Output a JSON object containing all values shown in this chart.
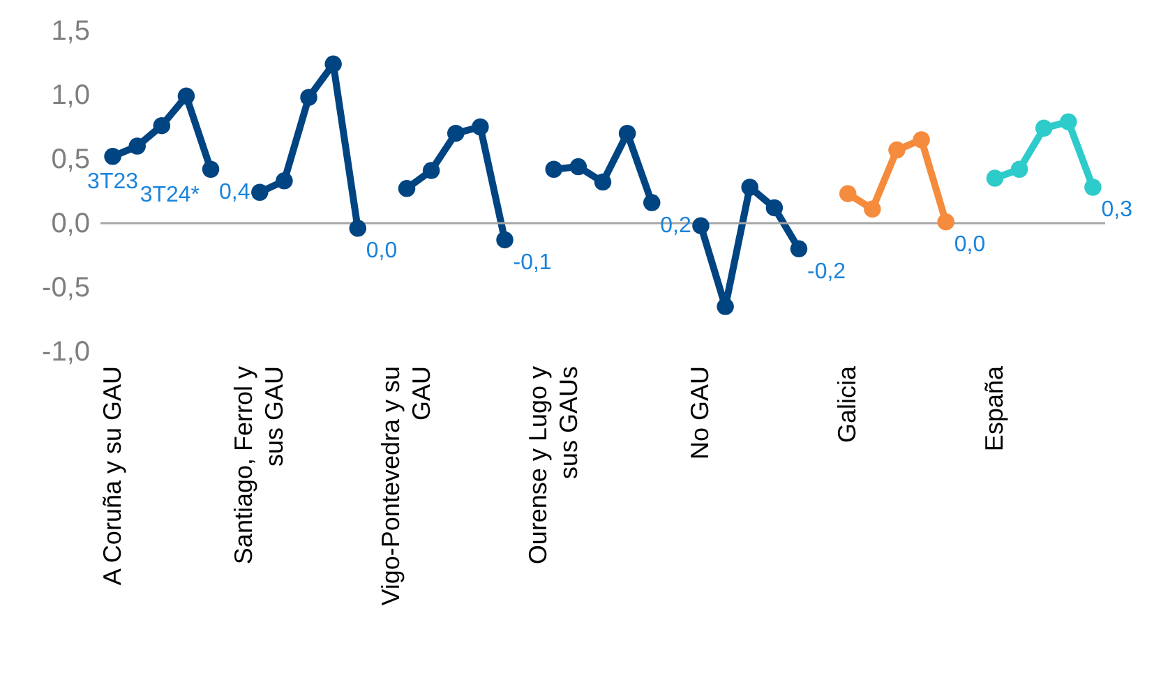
{
  "chart_data": {
    "type": "line",
    "marker": "circle",
    "line_style": "solid",
    "categories": [
      "A Coruña y su GAU",
      null,
      null,
      null,
      null,
      null,
      "Santiago, Ferrol y\nsus GAU",
      null,
      null,
      null,
      null,
      null,
      "Vigo-Pontevedra y su\nGAU",
      null,
      null,
      null,
      null,
      null,
      "Ourense y Lugo y\nsus GAUs",
      null,
      null,
      null,
      null,
      null,
      "No GAU",
      null,
      null,
      null,
      null,
      null,
      "Galicia",
      null,
      null,
      null,
      null,
      null,
      "España",
      null,
      null,
      null,
      null
    ],
    "ylim": [
      -1.0,
      1.5
    ],
    "yticks": [
      {
        "value": -1.0,
        "label": "-1,0"
      },
      {
        "value": -0.5,
        "label": "-0,5"
      },
      {
        "value": 0,
        "label": "0,0"
      },
      {
        "value": 0.5,
        "label": "0,5"
      },
      {
        "value": 1.0,
        "label": "1,0"
      },
      {
        "value": 1.5,
        "label": "1,5"
      }
    ],
    "ref_lines": [
      {
        "axis": "y",
        "value": 0,
        "color": "#a6a6a6"
      }
    ],
    "annotations": [
      "3T23",
      "3T24*"
    ],
    "series": [
      {
        "color": "#004481",
        "values": [
          0.52,
          0.6,
          0.76,
          0.99,
          0.42,
          null,
          null,
          null,
          null,
          null,
          null,
          null,
          null,
          null,
          null,
          null,
          null,
          null,
          null,
          null,
          null,
          null,
          null,
          null,
          null,
          null,
          null,
          null,
          null,
          null,
          null,
          null,
          null,
          null,
          null,
          null,
          null,
          null,
          null,
          null,
          null
        ],
        "value_labels": [
          null,
          null,
          null,
          null,
          "0,4",
          null,
          null,
          null,
          null,
          null,
          null,
          null,
          null,
          null,
          null,
          null,
          null,
          null,
          null,
          null,
          null,
          null,
          null,
          null,
          null,
          null,
          null,
          null,
          null,
          null,
          null,
          null,
          null,
          null,
          null,
          null,
          null,
          null,
          null,
          null,
          null
        ]
      },
      {
        "color": "#004481",
        "values": [
          null,
          null,
          null,
          null,
          null,
          null,
          0.24,
          0.33,
          0.98,
          1.24,
          -0.04,
          null,
          null,
          null,
          null,
          null,
          null,
          null,
          null,
          null,
          null,
          null,
          null,
          null,
          null,
          null,
          null,
          null,
          null,
          null,
          null,
          null,
          null,
          null,
          null,
          null,
          null,
          null,
          null,
          null,
          null
        ],
        "value_labels": [
          null,
          null,
          null,
          null,
          null,
          null,
          null,
          null,
          null,
          null,
          "0,0",
          null,
          null,
          null,
          null,
          null,
          null,
          null,
          null,
          null,
          null,
          null,
          null,
          null,
          null,
          null,
          null,
          null,
          null,
          null,
          null,
          null,
          null,
          null,
          null,
          null,
          null,
          null,
          null,
          null,
          null
        ]
      },
      {
        "color": "#004481",
        "values": [
          null,
          null,
          null,
          null,
          null,
          null,
          null,
          null,
          null,
          null,
          null,
          null,
          0.27,
          0.41,
          0.7,
          0.75,
          -0.13,
          null,
          null,
          null,
          null,
          null,
          null,
          null,
          null,
          null,
          null,
          null,
          null,
          null,
          null,
          null,
          null,
          null,
          null,
          null,
          null,
          null,
          null,
          null,
          null
        ],
        "value_labels": [
          null,
          null,
          null,
          null,
          null,
          null,
          null,
          null,
          null,
          null,
          null,
          null,
          null,
          null,
          null,
          null,
          "-0,1",
          null,
          null,
          null,
          null,
          null,
          null,
          null,
          null,
          null,
          null,
          null,
          null,
          null,
          null,
          null,
          null,
          null,
          null,
          null,
          null,
          null,
          null,
          null,
          null
        ]
      },
      {
        "color": "#004481",
        "values": [
          null,
          null,
          null,
          null,
          null,
          null,
          null,
          null,
          null,
          null,
          null,
          null,
          null,
          null,
          null,
          null,
          null,
          null,
          0.42,
          0.44,
          0.32,
          0.7,
          0.16,
          null,
          null,
          null,
          null,
          null,
          null,
          null,
          null,
          null,
          null,
          null,
          null,
          null,
          null,
          null,
          null,
          null,
          null
        ],
        "value_labels": [
          null,
          null,
          null,
          null,
          null,
          null,
          null,
          null,
          null,
          null,
          null,
          null,
          null,
          null,
          null,
          null,
          null,
          null,
          null,
          null,
          null,
          null,
          "0,2",
          null,
          null,
          null,
          null,
          null,
          null,
          null,
          null,
          null,
          null,
          null,
          null,
          null,
          null,
          null,
          null,
          null,
          null
        ]
      },
      {
        "color": "#004481",
        "values": [
          null,
          null,
          null,
          null,
          null,
          null,
          null,
          null,
          null,
          null,
          null,
          null,
          null,
          null,
          null,
          null,
          null,
          null,
          null,
          null,
          null,
          null,
          null,
          null,
          -0.02,
          -0.65,
          0.28,
          0.12,
          -0.2,
          null,
          null,
          null,
          null,
          null,
          null,
          null,
          null,
          null,
          null,
          null,
          null
        ],
        "value_labels": [
          null,
          null,
          null,
          null,
          null,
          null,
          null,
          null,
          null,
          null,
          null,
          null,
          null,
          null,
          null,
          null,
          null,
          null,
          null,
          null,
          null,
          null,
          null,
          null,
          null,
          null,
          null,
          null,
          "-0,2",
          null,
          null,
          null,
          null,
          null,
          null,
          null,
          null,
          null,
          null,
          null,
          null
        ]
      },
      {
        "color": "#f58b3c",
        "values": [
          null,
          null,
          null,
          null,
          null,
          null,
          null,
          null,
          null,
          null,
          null,
          null,
          null,
          null,
          null,
          null,
          null,
          null,
          null,
          null,
          null,
          null,
          null,
          null,
          null,
          null,
          null,
          null,
          null,
          null,
          0.23,
          0.11,
          0.57,
          0.65,
          0.01,
          null,
          null,
          null,
          null,
          null,
          null
        ],
        "value_labels": [
          null,
          null,
          null,
          null,
          null,
          null,
          null,
          null,
          null,
          null,
          null,
          null,
          null,
          null,
          null,
          null,
          null,
          null,
          null,
          null,
          null,
          null,
          null,
          null,
          null,
          null,
          null,
          null,
          null,
          null,
          null,
          null,
          null,
          null,
          "0,0",
          null,
          null,
          null,
          null,
          null,
          null
        ]
      },
      {
        "color": "#2ecbcb",
        "values": [
          null,
          null,
          null,
          null,
          null,
          null,
          null,
          null,
          null,
          null,
          null,
          null,
          null,
          null,
          null,
          null,
          null,
          null,
          null,
          null,
          null,
          null,
          null,
          null,
          null,
          null,
          null,
          null,
          null,
          null,
          null,
          null,
          null,
          null,
          null,
          null,
          0.35,
          0.42,
          0.74,
          0.79,
          0.28
        ],
        "value_labels": [
          null,
          null,
          null,
          null,
          null,
          null,
          null,
          null,
          null,
          null,
          null,
          null,
          null,
          null,
          null,
          null,
          null,
          null,
          null,
          null,
          null,
          null,
          null,
          null,
          null,
          null,
          null,
          null,
          null,
          null,
          null,
          null,
          null,
          null,
          null,
          null,
          null,
          null,
          null,
          null,
          "0,3"
        ]
      }
    ]
  }
}
